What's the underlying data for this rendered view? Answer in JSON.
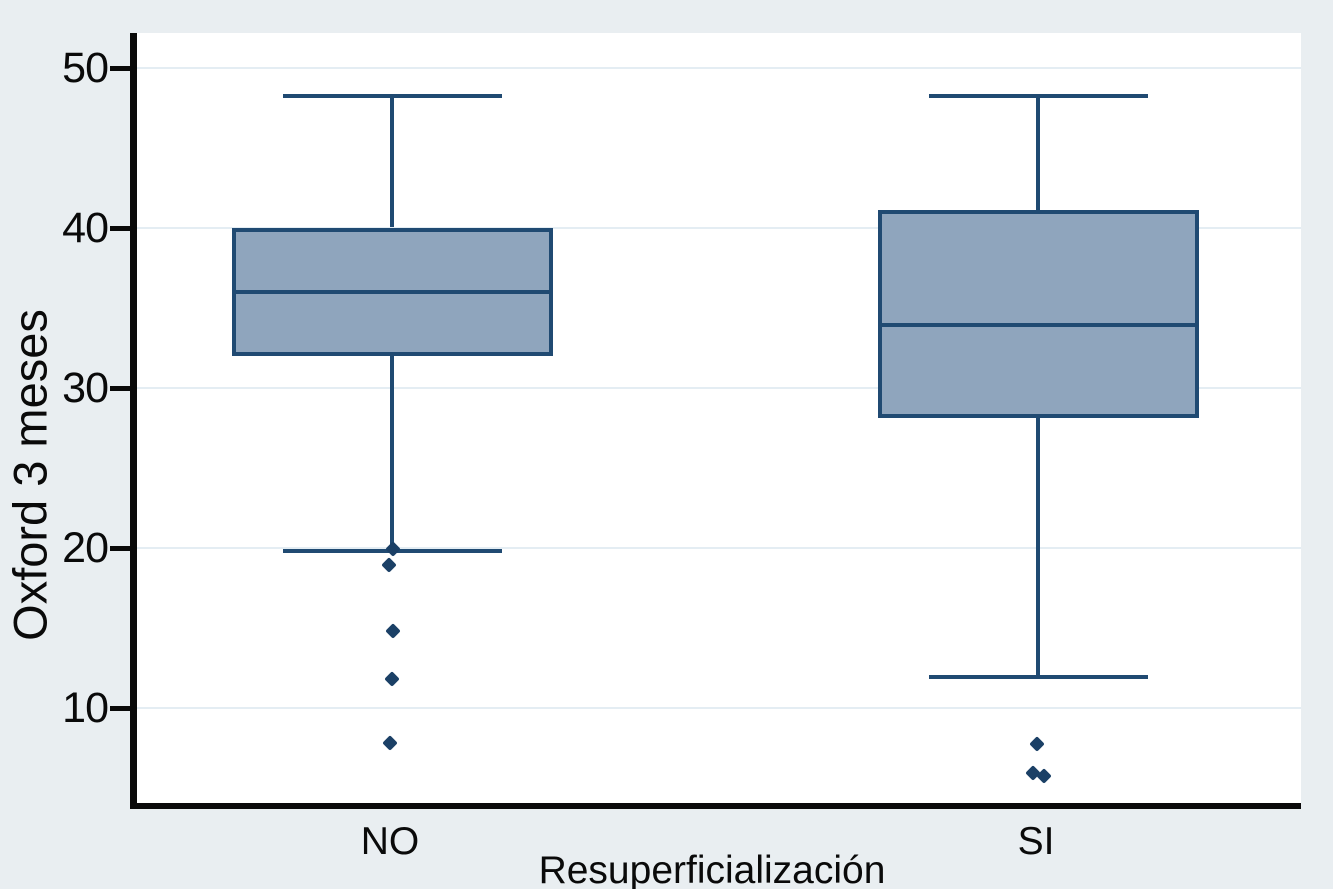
{
  "figure": {
    "background_color": "#e9eef1",
    "plot_background_color": "#ffffff",
    "grid_color": "#e4edf3",
    "box_fill_color": "#8fa5bd",
    "box_stroke_color": "#204a72",
    "marker_color": "#1b4066",
    "axis_color": "#0a0a0a"
  },
  "chart_data": {
    "type": "box",
    "title": "",
    "xlabel": "Resuperficialización",
    "ylabel": "Oxford 3 meses",
    "categories": [
      "NO",
      "SI"
    ],
    "y_ticks": [
      50,
      40,
      30,
      20,
      10
    ],
    "ylim": [
      3.8,
      52.2
    ],
    "grid": true,
    "legend": "none",
    "boxes": [
      {
        "category": "NO",
        "whisker_high": 48.2,
        "q3": 40,
        "median": 36,
        "q1": 32,
        "whisker_low": 19.8,
        "outliers": [
          {
            "value": 19.9,
            "dx": 1
          },
          {
            "value": 18.9,
            "dx": -3
          },
          {
            "value": 14.8,
            "dx": 1
          },
          {
            "value": 11.8,
            "dx": 0
          },
          {
            "value": 7.8,
            "dx": -2
          }
        ]
      },
      {
        "category": "SI",
        "whisker_high": 48.2,
        "q3": 41.1,
        "median": 33.9,
        "q1": 28.1,
        "whisker_low": 11.9,
        "outliers": [
          {
            "value": 7.7,
            "dx": -1
          },
          {
            "value": 5.9,
            "dx": -5
          },
          {
            "value": 5.7,
            "dx": 6
          }
        ]
      }
    ]
  }
}
